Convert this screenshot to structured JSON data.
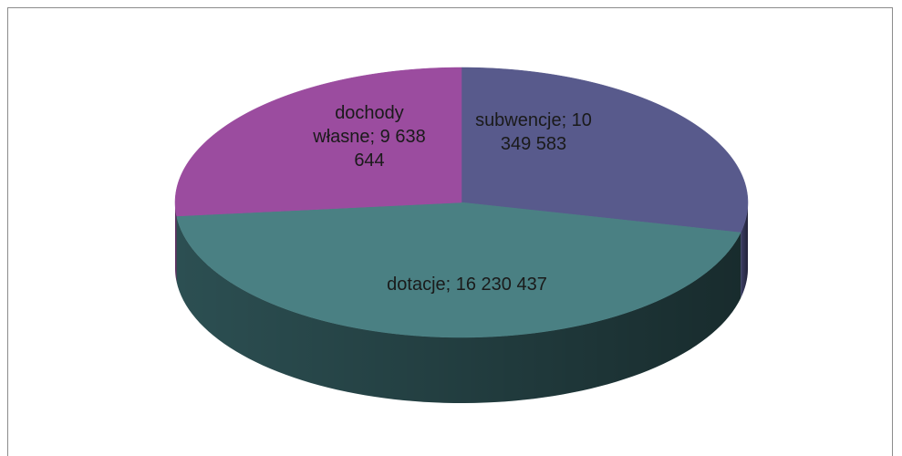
{
  "chart_data": {
    "type": "pie3d",
    "values": [
      10349583,
      16230437,
      9638644
    ],
    "value_labels": [
      "subwencje; 10 349 583",
      "dotacje; 16 230 437",
      "dochody własne; 9 638 644"
    ],
    "colors": [
      "#585a8c",
      "#4a8083",
      "#9b4c9f"
    ],
    "side_colors": [
      "#3d3f66",
      "#2c4f52",
      "#6e3472"
    ]
  }
}
